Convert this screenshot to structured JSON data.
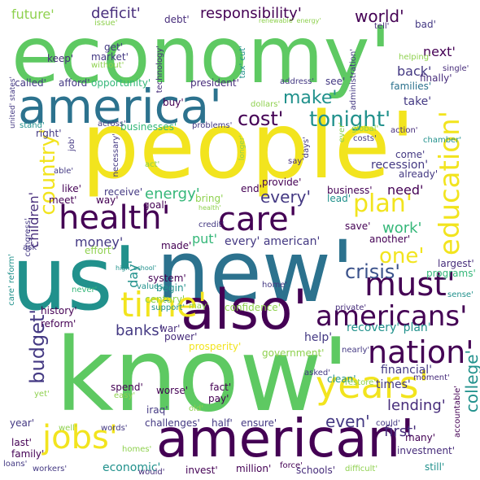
{
  "words": [
    {
      "id": "economy",
      "text": "economy'"
    },
    {
      "id": "people",
      "text": "people'"
    },
    {
      "id": "us",
      "text": "us'"
    },
    {
      "id": "new",
      "text": "new'"
    },
    {
      "id": "know",
      "text": "know'"
    },
    {
      "id": "america",
      "text": "america'"
    },
    {
      "id": "american",
      "text": "american'"
    },
    {
      "id": "also",
      "text": "also'"
    },
    {
      "id": "health",
      "text": "health'"
    },
    {
      "id": "care",
      "text": "care'"
    },
    {
      "id": "must",
      "text": "must'"
    },
    {
      "id": "education",
      "text": "education'"
    },
    {
      "id": "years",
      "text": "years'"
    },
    {
      "id": "jobs",
      "text": "jobs'"
    },
    {
      "id": "time",
      "text": "time'"
    },
    {
      "id": "americans",
      "text": "americans'"
    },
    {
      "id": "nation",
      "text": "nation'"
    },
    {
      "id": "tonight",
      "text": "tonight'"
    },
    {
      "id": "cost",
      "text": "cost'"
    },
    {
      "id": "make",
      "text": "make'"
    },
    {
      "id": "plan",
      "text": "plan'"
    },
    {
      "id": "country",
      "text": "country'"
    },
    {
      "id": "one",
      "text": "one'"
    },
    {
      "id": "crisis",
      "text": "crisis'"
    },
    {
      "id": "world",
      "text": "world'"
    },
    {
      "id": "responsibility",
      "text": "responsibility'"
    },
    {
      "id": "deficit",
      "text": "deficit'"
    },
    {
      "id": "future",
      "text": "future'"
    },
    {
      "id": "next",
      "text": "next'"
    },
    {
      "id": "budget",
      "text": "budget'"
    },
    {
      "id": "banks",
      "text": "banks'"
    },
    {
      "id": "college",
      "text": "college'"
    },
    {
      "id": "every",
      "text": "every'"
    },
    {
      "id": "every_american",
      "text": "every' american'"
    },
    {
      "id": "money",
      "text": "money'"
    },
    {
      "id": "energy",
      "text": "energy'"
    },
    {
      "id": "children",
      "text": "children'"
    },
    {
      "id": "day",
      "text": "day'"
    },
    {
      "id": "put",
      "text": "put'"
    },
    {
      "id": "work",
      "text": "work'"
    },
    {
      "id": "need",
      "text": "need'"
    },
    {
      "id": "lending",
      "text": "lending'"
    },
    {
      "id": "even",
      "text": "even'"
    },
    {
      "id": "first",
      "text": "first'"
    },
    {
      "id": "year",
      "text": "year'"
    },
    {
      "id": "economic",
      "text": "economic'"
    },
    {
      "id": "help",
      "text": "help'"
    },
    {
      "id": "back",
      "text": "back'"
    },
    {
      "id": "take",
      "text": "take'"
    },
    {
      "id": "times",
      "text": "times'"
    },
    {
      "id": "recession",
      "text": "recession'"
    },
    {
      "id": "already",
      "text": "already'"
    },
    {
      "id": "come",
      "text": "come'"
    },
    {
      "id": "families",
      "text": "families'"
    },
    {
      "id": "finally",
      "text": "finally'"
    },
    {
      "id": "president",
      "text": "president'"
    },
    {
      "id": "businesses",
      "text": "businesses'"
    },
    {
      "id": "right",
      "text": "right'"
    },
    {
      "id": "buy",
      "text": "buy'"
    },
    {
      "id": "afford",
      "text": "afford'"
    },
    {
      "id": "called",
      "text": "called'"
    },
    {
      "id": "opportunity",
      "text": "opportunity'"
    },
    {
      "id": "market",
      "text": "market'"
    },
    {
      "id": "get",
      "text": "get'"
    },
    {
      "id": "keep",
      "text": "keep'"
    },
    {
      "id": "without",
      "text": "without'"
    },
    {
      "id": "technology",
      "text": "technology'"
    },
    {
      "id": "debt",
      "text": "debt'"
    },
    {
      "id": "issue",
      "text": "issue'"
    },
    {
      "id": "tax_cut",
      "text": "tax' cut'"
    },
    {
      "id": "dollars",
      "text": "dollars'"
    },
    {
      "id": "address",
      "text": "address'"
    },
    {
      "id": "see",
      "text": "see'"
    },
    {
      "id": "administration",
      "text": "administration'"
    },
    {
      "id": "helping",
      "text": "helping'"
    },
    {
      "id": "single",
      "text": "single'"
    },
    {
      "id": "bad",
      "text": "bad'"
    },
    {
      "id": "tell",
      "text": "tell'"
    },
    {
      "id": "renewable_energy",
      "text": "renewable' energy'"
    },
    {
      "id": "united_states",
      "text": "united' states'"
    },
    {
      "id": "stand",
      "text": "stand'"
    },
    {
      "id": "across",
      "text": "across'"
    },
    {
      "id": "problems",
      "text": "problems'"
    },
    {
      "id": "global",
      "text": "global'"
    },
    {
      "id": "costs",
      "text": "costs'"
    },
    {
      "id": "action",
      "text": "action'"
    },
    {
      "id": "chamber",
      "text": "chamber'"
    },
    {
      "id": "ever",
      "text": "ever'"
    },
    {
      "id": "days",
      "text": "days'"
    },
    {
      "id": "longer",
      "text": "longer'"
    },
    {
      "id": "say",
      "text": "say'"
    },
    {
      "id": "job",
      "text": "job'"
    },
    {
      "id": "able",
      "text": "able'"
    },
    {
      "id": "act",
      "text": "act'"
    },
    {
      "id": "necessary",
      "text": "necessary'"
    },
    {
      "id": "like",
      "text": "like'"
    },
    {
      "id": "receive",
      "text": "receive'"
    },
    {
      "id": "meet",
      "text": "meet'"
    },
    {
      "id": "way",
      "text": "way'"
    },
    {
      "id": "goal",
      "text": "goal'"
    },
    {
      "id": "bring",
      "text": "bring'"
    },
    {
      "id": "end",
      "text": "end'"
    },
    {
      "id": "provide",
      "text": "provide'"
    },
    {
      "id": "business",
      "text": "business'"
    },
    {
      "id": "lead",
      "text": "lead'"
    },
    {
      "id": "congress",
      "text": "congress'"
    },
    {
      "id": "ask",
      "text": "ask'"
    },
    {
      "id": "credit",
      "text": "credit'"
    },
    {
      "id": "health_small",
      "text": "health'"
    },
    {
      "id": "save",
      "text": "save'"
    },
    {
      "id": "another",
      "text": "another'"
    },
    {
      "id": "effort",
      "text": "effort'"
    },
    {
      "id": "made",
      "text": "made'"
    },
    {
      "id": "care_reform",
      "text": "care' reform'"
    },
    {
      "id": "high_school",
      "text": "high' school'"
    },
    {
      "id": "largest",
      "text": "largest'"
    },
    {
      "id": "programs",
      "text": "programs'"
    },
    {
      "id": "system",
      "text": "system'"
    },
    {
      "id": "begin",
      "text": "begin'"
    },
    {
      "id": "values",
      "text": "values'"
    },
    {
      "id": "century",
      "text": "century'"
    },
    {
      "id": "never",
      "text": "never'"
    },
    {
      "id": "home",
      "text": "home'"
    },
    {
      "id": "sense",
      "text": "sense'"
    },
    {
      "id": "history",
      "text": "history'"
    },
    {
      "id": "support",
      "text": "support'"
    },
    {
      "id": "may",
      "text": "may'"
    },
    {
      "id": "confidence",
      "text": "confidence'"
    },
    {
      "id": "private",
      "text": "private'"
    },
    {
      "id": "reform",
      "text": "reform'"
    },
    {
      "id": "recovery_plan",
      "text": "recovery' plan'"
    },
    {
      "id": "war",
      "text": "war'"
    },
    {
      "id": "power",
      "text": "power'"
    },
    {
      "id": "prosperity",
      "text": "prosperity'"
    },
    {
      "id": "government",
      "text": "government'"
    },
    {
      "id": "nearly",
      "text": "nearly'"
    },
    {
      "id": "financial",
      "text": "financial'"
    },
    {
      "id": "asked",
      "text": "asked'"
    },
    {
      "id": "clean",
      "text": "clean'"
    },
    {
      "id": "moment",
      "text": "moment'"
    },
    {
      "id": "restore",
      "text": "restore'"
    },
    {
      "id": "could",
      "text": "could'"
    },
    {
      "id": "accountable",
      "text": "accountable'"
    },
    {
      "id": "spend",
      "text": "spend'"
    },
    {
      "id": "worse",
      "text": "worse'"
    },
    {
      "id": "fact",
      "text": "fact'"
    },
    {
      "id": "pay",
      "text": "pay'"
    },
    {
      "id": "easy",
      "text": "easy'"
    },
    {
      "id": "yet",
      "text": "yet'"
    },
    {
      "id": "iraq",
      "text": "iraq'"
    },
    {
      "id": "old",
      "text": "old'"
    },
    {
      "id": "challenges",
      "text": "challenges'"
    },
    {
      "id": "half",
      "text": "half'"
    },
    {
      "id": "ensure",
      "text": "ensure'"
    },
    {
      "id": "well",
      "text": "well'"
    },
    {
      "id": "words",
      "text": "words'"
    },
    {
      "id": "many",
      "text": "many'"
    },
    {
      "id": "investment",
      "text": "investment'"
    },
    {
      "id": "last",
      "text": "last'"
    },
    {
      "id": "family",
      "text": "family'"
    },
    {
      "id": "homes",
      "text": "homes'"
    },
    {
      "id": "loans",
      "text": "loans'"
    },
    {
      "id": "workers",
      "text": "workers'"
    },
    {
      "id": "would",
      "text": "would'"
    },
    {
      "id": "invest",
      "text": "invest'"
    },
    {
      "id": "million",
      "text": "million'"
    },
    {
      "id": "force",
      "text": "force'"
    },
    {
      "id": "schools",
      "text": "schools'"
    },
    {
      "id": "difficult",
      "text": "difficult'"
    },
    {
      "id": "still",
      "text": "still'"
    }
  ],
  "palette": {
    "yellow": "#f2e41e",
    "lime": "#8fd14f",
    "green": "#5ec962",
    "teal_green": "#35b779",
    "teal": "#21918c",
    "blue_teal": "#2c728e",
    "blue": "#3b528b",
    "indigo": "#443983",
    "purple": "#472d7b",
    "dark_purple": "#440154"
  }
}
